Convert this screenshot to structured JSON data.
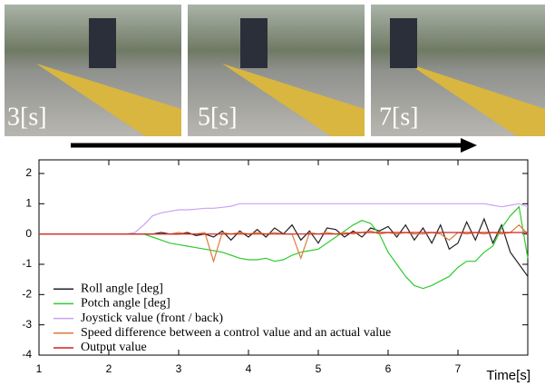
{
  "photos": [
    {
      "label": "3[s]"
    },
    {
      "label": "5[s]"
    },
    {
      "label": "7[s]"
    }
  ],
  "chart_data": {
    "type": "line",
    "xlabel": "Time[s]",
    "x": [
      1,
      1.125,
      1.25,
      1.375,
      1.5,
      1.625,
      1.75,
      1.875,
      2,
      2.125,
      2.25,
      2.375,
      2.5,
      2.625,
      2.75,
      2.875,
      3,
      3.125,
      3.25,
      3.375,
      3.5,
      3.625,
      3.75,
      3.875,
      4,
      4.125,
      4.25,
      4.375,
      4.5,
      4.625,
      4.75,
      4.875,
      5,
      5.125,
      5.25,
      5.375,
      5.5,
      5.625,
      5.75,
      5.875,
      6,
      6.125,
      6.25,
      6.375,
      6.5,
      6.625,
      6.75,
      6.875,
      7,
      7.125,
      7.25,
      7.375,
      7.5,
      7.625,
      7.75,
      7.875,
      8
    ],
    "series": [
      {
        "name": "Roll angle [deg]",
        "color": "#222222",
        "values": [
          0,
          0,
          0,
          0,
          0,
          0,
          0,
          0,
          0,
          0,
          0,
          0,
          0,
          0,
          0.05,
          0,
          0,
          0.05,
          -0.05,
          0,
          -0.1,
          0.1,
          -0.2,
          0.1,
          -0.1,
          0.15,
          -0.1,
          0.2,
          0,
          0.3,
          -0.2,
          0.1,
          -0.3,
          0.2,
          0.15,
          -0.1,
          0.1,
          -0.1,
          0.2,
          0.1,
          0.25,
          -0.1,
          0.3,
          -0.2,
          0.2,
          -0.3,
          0.3,
          -0.5,
          -0.3,
          0.4,
          -0.2,
          0.5,
          -0.3,
          0.3,
          -0.6,
          -1.0,
          -1.4
        ]
      },
      {
        "name": "Potch angle [deg]",
        "color": "#2ecc2e",
        "values": [
          0,
          0,
          0,
          0,
          0,
          0,
          0,
          0,
          0,
          0,
          0,
          0,
          0,
          -0.1,
          -0.2,
          -0.3,
          -0.35,
          -0.4,
          -0.45,
          -0.5,
          -0.55,
          -0.6,
          -0.7,
          -0.8,
          -0.85,
          -0.85,
          -0.8,
          -0.9,
          -0.85,
          -0.7,
          -0.6,
          -0.55,
          -0.5,
          -0.3,
          -0.1,
          0.1,
          0.3,
          0.45,
          0.35,
          0,
          -0.6,
          -1.0,
          -1.4,
          -1.7,
          -1.8,
          -1.7,
          -1.55,
          -1.4,
          -1.1,
          -0.9,
          -0.9,
          -0.6,
          -0.4,
          0.2,
          0.6,
          0.9,
          -0.8
        ]
      },
      {
        "name": "Joystick value (front / back)",
        "color": "#c9a3f2",
        "values": [
          0,
          0,
          0,
          0,
          0,
          0,
          0,
          0,
          0,
          0,
          0,
          0.05,
          0.3,
          0.6,
          0.7,
          0.75,
          0.8,
          0.8,
          0.82,
          0.85,
          0.85,
          0.88,
          0.92,
          1.0,
          1.0,
          1.0,
          1.0,
          1.0,
          1.0,
          1.0,
          1.0,
          1.0,
          1.0,
          1.0,
          1.0,
          1.0,
          1.0,
          1.0,
          1.0,
          1.0,
          1.0,
          1.0,
          1.0,
          1.0,
          1.0,
          1.0,
          1.0,
          1.0,
          1.0,
          1.0,
          1.0,
          1.0,
          0.95,
          0.9,
          0.95,
          1.0,
          0.9
        ]
      },
      {
        "name": "Speed difference between a control value and an actual value",
        "color": "#e07a3a",
        "values": [
          0,
          0,
          0,
          0,
          0,
          0,
          0,
          0,
          0,
          0,
          0,
          0,
          0,
          0,
          0,
          0,
          0.05,
          0,
          0,
          0.05,
          -0.9,
          0.05,
          0,
          0.05,
          0,
          0.05,
          0,
          0.05,
          0,
          0,
          -0.8,
          0.05,
          0,
          0.05,
          0,
          0.05,
          0,
          0.05,
          0.1,
          0,
          0.05,
          0,
          0.05,
          0,
          0,
          0.05,
          0,
          -0.2,
          0.05,
          0,
          0.05,
          0,
          0.05,
          0,
          0.05,
          0.3,
          0
        ]
      },
      {
        "name": "Output value",
        "color": "#d02020",
        "values": [
          0,
          0,
          0,
          0,
          0,
          0,
          0,
          0,
          0,
          0,
          0,
          0,
          0,
          0,
          0,
          0,
          0,
          0,
          0,
          0,
          0,
          0,
          0,
          0,
          0,
          0,
          0,
          0,
          0,
          0,
          0,
          0,
          0,
          0,
          0,
          0,
          0.05,
          0.05,
          0.05,
          0.05,
          0.05,
          0.05,
          0.05,
          0.05,
          0.05,
          0.05,
          0.05,
          0.05,
          0.05,
          0.05,
          0.05,
          0.05,
          0.05,
          0.05,
          0.05,
          0.05,
          0.05
        ]
      }
    ],
    "xlim": [
      1,
      8
    ],
    "ylim": [
      -4,
      2.45
    ],
    "xticks": [
      1,
      2,
      3,
      4,
      5,
      6,
      7
    ],
    "yticks": [
      -4,
      -3,
      -2,
      -1,
      0,
      1,
      2
    ],
    "legend": "lower left"
  }
}
